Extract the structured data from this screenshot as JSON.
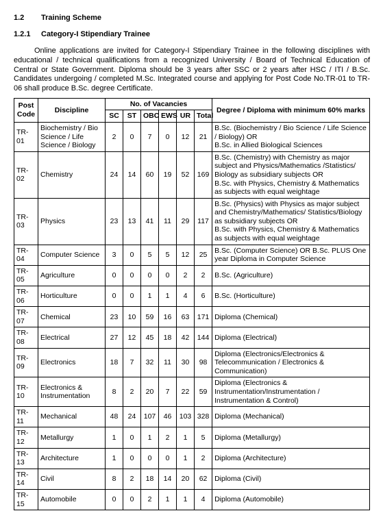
{
  "heading1": {
    "num": "1.2",
    "text": "Training Scheme"
  },
  "heading2": {
    "num": "1.2.1",
    "text": "Category-I Stipendiary Trainee"
  },
  "intro": "Online applications are invited for Category-I Stipendiary Trainee in the following disciplines with educational / technical qualifications from a recognized University / Board of Technical Education of Central or State Government. Diploma should be 3 years after SSC or 2 years after HSC / ITI / B.Sc. Candidates undergoing / completed M.Sc. Integrated course and applying for Post Code No.TR-01 to TR-06 shall produce B.Sc. degree Certificate.",
  "columns": {
    "postcode": "Post Code",
    "discipline": "Discipline",
    "vacancies": "No. of Vacancies",
    "sc": "SC",
    "st": "ST",
    "obc": "OBC",
    "ews": "EWS",
    "ur": "UR",
    "total": "Total",
    "degree": "Degree / Diploma with minimum 60% marks"
  },
  "rows": [
    {
      "code": "TR-01",
      "disc": "Biochemistry / Bio Science / Life Science / Biology",
      "sc": "2",
      "st": "0",
      "obc": "7",
      "ews": "0",
      "ur": "12",
      "total": "21",
      "deg": "B.Sc. (Biochemistry / Bio Science / Life Science / Biology) OR\nB.Sc. in Allied Biological Sciences"
    },
    {
      "code": "TR-02",
      "disc": "Chemistry",
      "sc": "24",
      "st": "14",
      "obc": "60",
      "ews": "19",
      "ur": "52",
      "total": "169",
      "deg": "B.Sc. (Chemistry) with Chemistry as major subject and Physics/Mathematics /Statistics/ Biology as subsidiary subjects OR\nB.Sc. with Physics, Chemistry & Mathematics as subjects with equal weightage"
    },
    {
      "code": "TR-03",
      "disc": "Physics",
      "sc": "23",
      "st": "13",
      "obc": "41",
      "ews": "11",
      "ur": "29",
      "total": "117",
      "deg": "B.Sc. (Physics) with Physics as major subject and Chemistry/Mathematics/ Statistics/Biology as subsidiary subjects OR\nB.Sc. with Physics, Chemistry & Mathematics as subjects with equal weightage"
    },
    {
      "code": "TR-04",
      "disc": "Computer Science",
      "sc": "3",
      "st": "0",
      "obc": "5",
      "ews": "5",
      "ur": "12",
      "total": "25",
      "deg": "B.Sc. (Computer Science) OR B.Sc. PLUS One year Diploma in Computer Science"
    },
    {
      "code": "TR-05",
      "disc": "Agriculture",
      "sc": "0",
      "st": "0",
      "obc": "0",
      "ews": "0",
      "ur": "2",
      "total": "2",
      "deg": "B.Sc. (Agriculture)"
    },
    {
      "code": "TR-06",
      "disc": "Horticulture",
      "sc": "0",
      "st": "0",
      "obc": "1",
      "ews": "1",
      "ur": "4",
      "total": "6",
      "deg": "B.Sc. (Horticulture)"
    },
    {
      "code": "TR-07",
      "disc": "Chemical",
      "sc": "23",
      "st": "10",
      "obc": "59",
      "ews": "16",
      "ur": "63",
      "total": "171",
      "deg": "Diploma (Chemical)"
    },
    {
      "code": "TR-08",
      "disc": "Electrical",
      "sc": "27",
      "st": "12",
      "obc": "45",
      "ews": "18",
      "ur": "42",
      "total": "144",
      "deg": "Diploma (Electrical)"
    },
    {
      "code": "TR-09",
      "disc": "Electronics",
      "sc": "18",
      "st": "7",
      "obc": "32",
      "ews": "11",
      "ur": "30",
      "total": "98",
      "deg": "Diploma (Electronics/Electronics & Telecommunication / Electronics & Communication)"
    },
    {
      "code": "TR-10",
      "disc": "Electronics & Instrumentation",
      "sc": "8",
      "st": "2",
      "obc": "20",
      "ews": "7",
      "ur": "22",
      "total": "59",
      "deg": "Diploma (Electronics & Instrumentation/Instrumentation / Instrumentation & Control)"
    },
    {
      "code": "TR-11",
      "disc": "Mechanical",
      "sc": "48",
      "st": "24",
      "obc": "107",
      "ews": "46",
      "ur": "103",
      "total": "328",
      "deg": "Diploma (Mechanical)"
    },
    {
      "code": "TR-12",
      "disc": "Metallurgy",
      "sc": "1",
      "st": "0",
      "obc": "1",
      "ews": "2",
      "ur": "1",
      "total": "5",
      "deg": "Diploma (Metallurgy)"
    },
    {
      "code": "TR-13",
      "disc": "Architecture",
      "sc": "1",
      "st": "0",
      "obc": "0",
      "ews": "0",
      "ur": "1",
      "total": "2",
      "deg": "Diploma (Architecture)"
    },
    {
      "code": "TR-14",
      "disc": "Civil",
      "sc": "8",
      "st": "2",
      "obc": "18",
      "ews": "14",
      "ur": "20",
      "total": "62",
      "deg": "Diploma (Civil)"
    },
    {
      "code": "TR-15",
      "disc": "Automobile",
      "sc": "0",
      "st": "0",
      "obc": "2",
      "ews": "1",
      "ur": "1",
      "total": "4",
      "deg": "Diploma (Automobile)"
    }
  ]
}
